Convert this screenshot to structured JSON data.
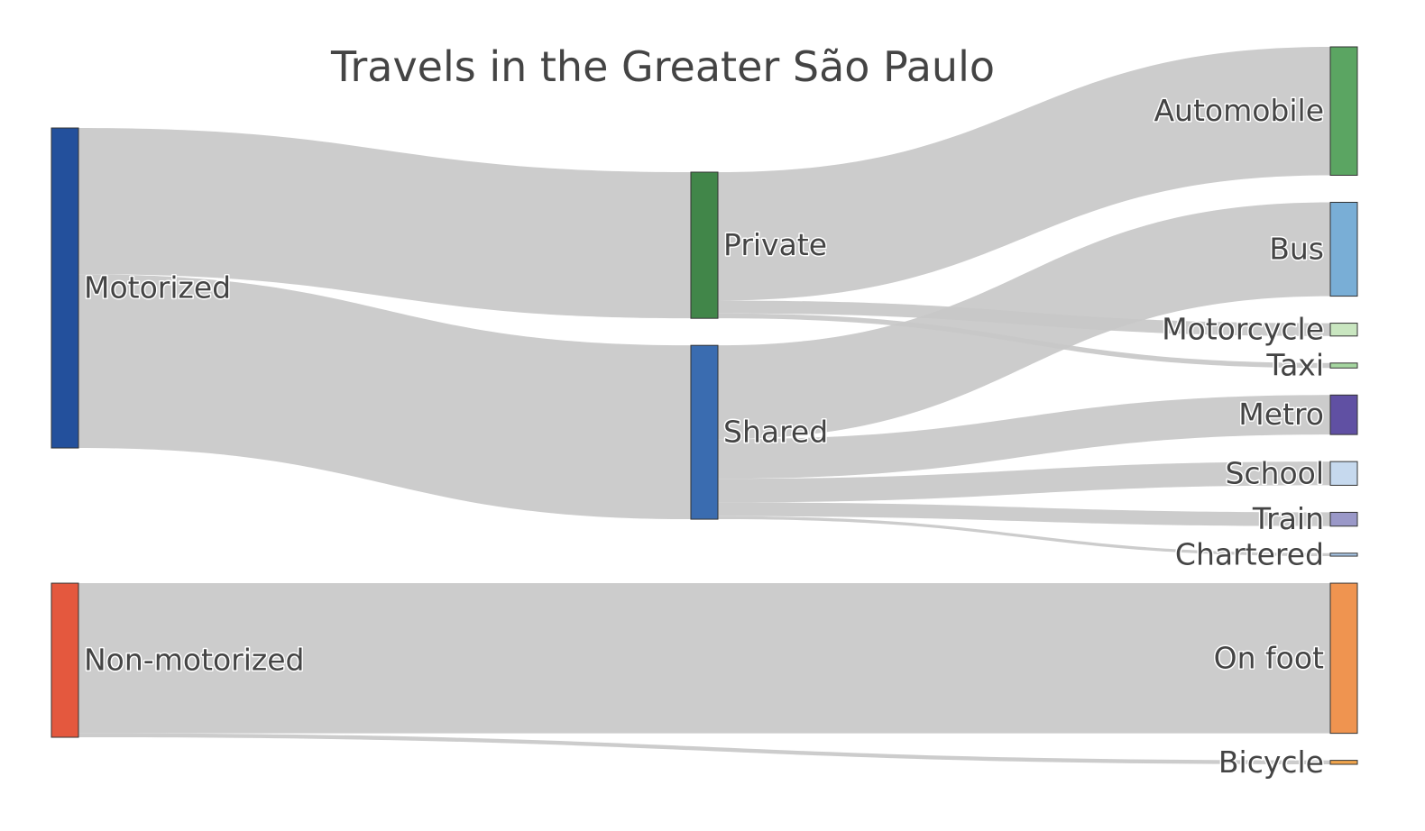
{
  "chart_data": {
    "type": "sankey",
    "title": "Travels in the Greater São Paulo",
    "nodes": [
      {
        "id": "motorized",
        "label": "Motorized",
        "color": "#23509c"
      },
      {
        "id": "non_motorized",
        "label": "Non-motorized",
        "color": "#e4583e"
      },
      {
        "id": "private",
        "label": "Private",
        "color": "#418649"
      },
      {
        "id": "shared",
        "label": "Shared",
        "color": "#3a6cb0"
      },
      {
        "id": "automobile",
        "label": "Automobile",
        "color": "#5ba562"
      },
      {
        "id": "bus",
        "label": "Bus",
        "color": "#79aed6"
      },
      {
        "id": "motorcycle",
        "label": "Motorcycle",
        "color": "#c9e6c0"
      },
      {
        "id": "taxi",
        "label": "Taxi",
        "color": "#a5d6a0"
      },
      {
        "id": "metro",
        "label": "Metro",
        "color": "#6050a3"
      },
      {
        "id": "school",
        "label": "School",
        "color": "#c6d9ee"
      },
      {
        "id": "train",
        "label": "Train",
        "color": "#9a98c8"
      },
      {
        "id": "chartered",
        "label": "Chartered",
        "color": "#a9c7e6"
      },
      {
        "id": "on_foot",
        "label": "On foot",
        "color": "#ef9450"
      },
      {
        "id": "bicycle",
        "label": "Bicycle",
        "color": "#f1a54c"
      }
    ],
    "links": [
      {
        "source": "motorized",
        "target": "private",
        "value": 14.8
      },
      {
        "source": "motorized",
        "target": "shared",
        "value": 17.6
      },
      {
        "source": "non_motorized",
        "target": "on_foot",
        "value": 15.2
      },
      {
        "source": "non_motorized",
        "target": "bicycle",
        "value": 0.4
      },
      {
        "source": "private",
        "target": "automobile",
        "value": 13.0
      },
      {
        "source": "private",
        "target": "motorcycle",
        "value": 1.3
      },
      {
        "source": "private",
        "target": "taxi",
        "value": 0.5
      },
      {
        "source": "shared",
        "target": "bus",
        "value": 9.5
      },
      {
        "source": "shared",
        "target": "metro",
        "value": 4.0
      },
      {
        "source": "shared",
        "target": "school",
        "value": 2.4
      },
      {
        "source": "shared",
        "target": "train",
        "value": 1.4
      },
      {
        "source": "shared",
        "target": "chartered",
        "value": 0.3
      }
    ]
  }
}
